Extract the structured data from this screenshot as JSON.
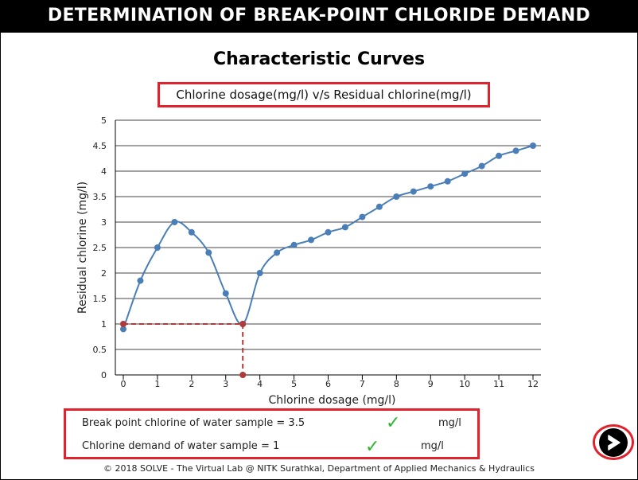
{
  "banner": {
    "title": "DETERMINATION OF BREAK-POINT CHLORIDE DEMAND"
  },
  "page": {
    "title": "Characteristic Curves"
  },
  "chart_data": {
    "type": "line",
    "title": "Chlorine dosage(mg/l) v/s Residual chlorine(mg/l)",
    "xlabel": "Chlorine dosage (mg/l)",
    "ylabel": "Residual chlorine (mg/l)",
    "xlim": [
      0,
      12
    ],
    "ylim": [
      0,
      5
    ],
    "xticks": [
      "0",
      "1",
      "2",
      "3",
      "4",
      "5",
      "6",
      "7",
      "8",
      "9",
      "10",
      "11",
      "12"
    ],
    "yticks": [
      "0",
      "0.5",
      "1",
      "1.5",
      "2",
      "2.5",
      "3",
      "3.5",
      "4",
      "4.5",
      "5"
    ],
    "grid": "horizontal",
    "series": [
      {
        "color": "#4a7eb8",
        "x": [
          0,
          0.5,
          1,
          1.5,
          2,
          2.5,
          3,
          3.5,
          4,
          4.5,
          5,
          5.5,
          6,
          6.5,
          7,
          7.5,
          8,
          8.5,
          9,
          9.5,
          10,
          10.5,
          11,
          11.5,
          12
        ],
        "y": [
          0.9,
          1.85,
          2.5,
          3.0,
          2.8,
          2.4,
          1.6,
          1.0,
          2.0,
          2.4,
          2.55,
          2.65,
          2.8,
          2.9,
          3.1,
          3.3,
          3.5,
          3.6,
          3.7,
          3.8,
          3.95,
          4.1,
          4.3,
          4.4,
          4.5
        ]
      }
    ],
    "breakpoint_marker": {
      "x": 3.5,
      "y": 1.0,
      "color": "#b03a3a"
    }
  },
  "results": {
    "break_point_label": "Break point chlorine of water sample = 3.5",
    "break_point_unit": "mg/l",
    "demand_label": "Chlorine demand of water sample = 1",
    "demand_unit": "mg/l",
    "check_glyph": "✓"
  },
  "footer": {
    "text": "© 2018 SOLVE - The Virtual Lab @ NITK Surathkal, Department of Applied Mechanics & Hydraulics"
  },
  "next_button": {
    "icon": "next-arrow-icon"
  }
}
